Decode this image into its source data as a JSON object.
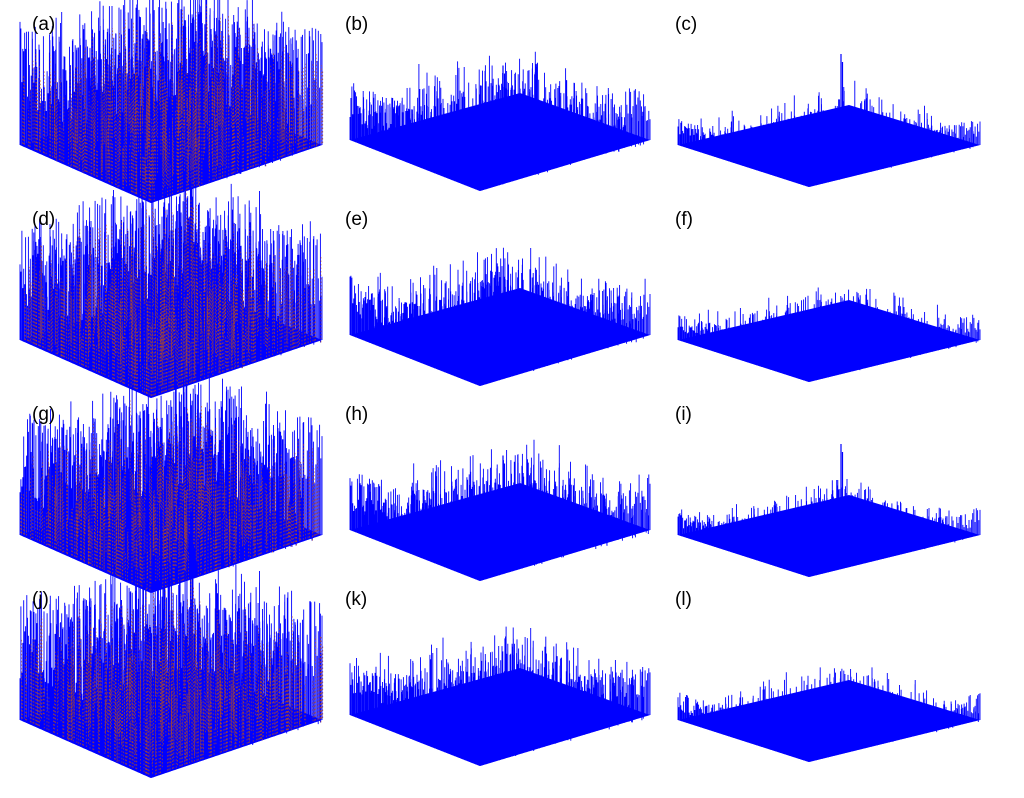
{
  "figure": {
    "panels": [
      {
        "label": "(a)",
        "style": "tall",
        "spike": false
      },
      {
        "label": "(b)",
        "style": "medium",
        "spike": true
      },
      {
        "label": "(c)",
        "style": "flat",
        "spike": true
      },
      {
        "label": "(d)",
        "style": "tall",
        "spike": false
      },
      {
        "label": "(e)",
        "style": "medium",
        "spike": false
      },
      {
        "label": "(f)",
        "style": "flat",
        "spike": false
      },
      {
        "label": "(g)",
        "style": "tall",
        "spike": false
      },
      {
        "label": "(h)",
        "style": "medium",
        "spike": true
      },
      {
        "label": "(i)",
        "style": "flat",
        "spike": true
      },
      {
        "label": "(j)",
        "style": "tall",
        "spike": false
      },
      {
        "label": "(k)",
        "style": "medium",
        "spike": false
      },
      {
        "label": "(l)",
        "style": "flat",
        "spike": false
      }
    ],
    "colors": {
      "surface": "#0000ff",
      "highlight": "#cc5500",
      "background": "#ffffff"
    }
  }
}
